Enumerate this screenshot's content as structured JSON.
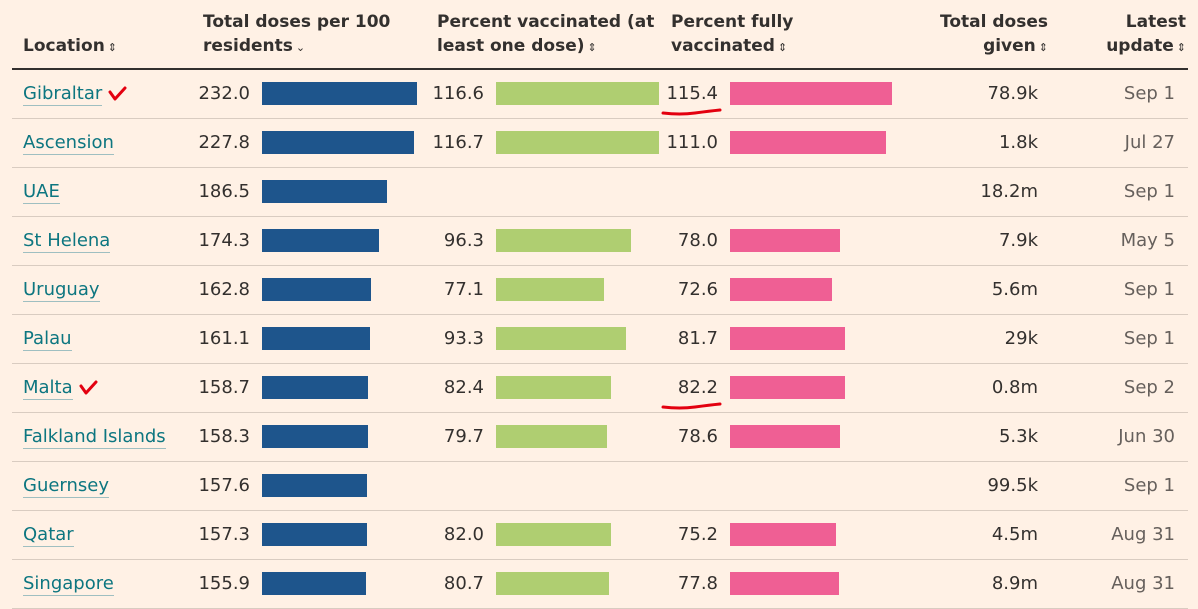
{
  "header": {
    "location": "Location",
    "doses_line1": "Total doses per 100",
    "doses_line2": "residents",
    "first_line1": "Percent vaccinated (at",
    "first_line2": "least one dose)",
    "full_line1": "Percent fully",
    "full_line2": "vaccinated",
    "total_line1": "Total doses",
    "total_line2": "given",
    "update_line1": "Latest",
    "update_line2": "update",
    "sort_symbol": "⇕",
    "sort_active_symbol": "⌄"
  },
  "colors": {
    "doses_bar": "#1e558c",
    "first_bar": "#afce71",
    "full_bar": "#ef5f94",
    "annotation": "#e3000f"
  },
  "chart_data": {
    "type": "table",
    "title": "",
    "columns": [
      "Location",
      "Total doses per 100 residents",
      "Percent vaccinated (at least one dose)",
      "Percent fully vaccinated",
      "Total doses given",
      "Latest update"
    ],
    "bar_scale_max": 232.0,
    "rows": [
      {
        "location": "Gibraltar",
        "doses_per_100": 232.0,
        "doses_label": "232.0",
        "pct_first": 116.6,
        "pct_first_label": "116.6",
        "pct_full": 115.4,
        "pct_full_label": "115.4",
        "total_doses": "78.9k",
        "latest_update": "Sep 1",
        "checked": true,
        "full_underlined": true
      },
      {
        "location": "Ascension",
        "doses_per_100": 227.8,
        "doses_label": "227.8",
        "pct_first": 116.7,
        "pct_first_label": "116.7",
        "pct_full": 111.0,
        "pct_full_label": "111.0",
        "total_doses": "1.8k",
        "latest_update": "Jul 27",
        "checked": false,
        "full_underlined": false
      },
      {
        "location": "UAE",
        "doses_per_100": 186.5,
        "doses_label": "186.5",
        "pct_first": null,
        "pct_first_label": "",
        "pct_full": null,
        "pct_full_label": "",
        "total_doses": "18.2m",
        "latest_update": "Sep 1",
        "checked": false,
        "full_underlined": false
      },
      {
        "location": "St Helena",
        "doses_per_100": 174.3,
        "doses_label": "174.3",
        "pct_first": 96.3,
        "pct_first_label": "96.3",
        "pct_full": 78.0,
        "pct_full_label": "78.0",
        "total_doses": "7.9k",
        "latest_update": "May 5",
        "checked": false,
        "full_underlined": false
      },
      {
        "location": "Uruguay",
        "doses_per_100": 162.8,
        "doses_label": "162.8",
        "pct_first": 77.1,
        "pct_first_label": "77.1",
        "pct_full": 72.6,
        "pct_full_label": "72.6",
        "total_doses": "5.6m",
        "latest_update": "Sep 1",
        "checked": false,
        "full_underlined": false
      },
      {
        "location": "Palau",
        "doses_per_100": 161.1,
        "doses_label": "161.1",
        "pct_first": 93.3,
        "pct_first_label": "93.3",
        "pct_full": 81.7,
        "pct_full_label": "81.7",
        "total_doses": "29k",
        "latest_update": "Sep 1",
        "checked": false,
        "full_underlined": false
      },
      {
        "location": "Malta",
        "doses_per_100": 158.7,
        "doses_label": "158.7",
        "pct_first": 82.4,
        "pct_first_label": "82.4",
        "pct_full": 82.2,
        "pct_full_label": "82.2",
        "total_doses": "0.8m",
        "latest_update": "Sep 2",
        "checked": true,
        "full_underlined": true
      },
      {
        "location": "Falkland Islands",
        "doses_per_100": 158.3,
        "doses_label": "158.3",
        "pct_first": 79.7,
        "pct_first_label": "79.7",
        "pct_full": 78.6,
        "pct_full_label": "78.6",
        "total_doses": "5.3k",
        "latest_update": "Jun 30",
        "checked": false,
        "full_underlined": false
      },
      {
        "location": "Guernsey",
        "doses_per_100": 157.6,
        "doses_label": "157.6",
        "pct_first": null,
        "pct_first_label": "",
        "pct_full": null,
        "pct_full_label": "",
        "total_doses": "99.5k",
        "latest_update": "Sep 1",
        "checked": false,
        "full_underlined": false
      },
      {
        "location": "Qatar",
        "doses_per_100": 157.3,
        "doses_label": "157.3",
        "pct_first": 82.0,
        "pct_first_label": "82.0",
        "pct_full": 75.2,
        "pct_full_label": "75.2",
        "total_doses": "4.5m",
        "latest_update": "Aug 31",
        "checked": false,
        "full_underlined": false
      },
      {
        "location": "Singapore",
        "doses_per_100": 155.9,
        "doses_label": "155.9",
        "pct_first": 80.7,
        "pct_first_label": "80.7",
        "pct_full": 77.8,
        "pct_full_label": "77.8",
        "total_doses": "8.9m",
        "latest_update": "Aug 31",
        "checked": false,
        "full_underlined": false
      }
    ]
  }
}
